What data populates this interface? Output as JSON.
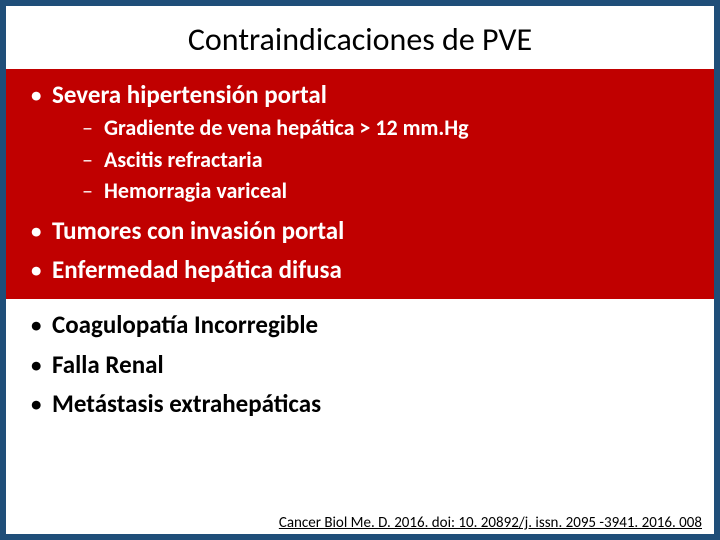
{
  "slide": {
    "title": "Contraindicaciones de PVE",
    "border_color": "#1f4e79",
    "background_color": "#ffffff",
    "title_fontsize": 32,
    "title_color": "#000000",
    "blocks": [
      {
        "background_color": "#c00000",
        "text_color": "#ffffff",
        "items": [
          {
            "text": "Severa hipertensión portal",
            "sub": [
              "Gradiente de vena hepática > 12 mm.Hg",
              "Ascitis refractaria",
              "Hemorragia variceal"
            ]
          },
          {
            "text": "Tumores con invasión portal",
            "sub": []
          },
          {
            "text": "Enfermedad hepática difusa",
            "sub": []
          }
        ]
      },
      {
        "background_color": "#ffffff",
        "text_color": "#000000",
        "items": [
          {
            "text": "Coagulopatía Incorregible",
            "sub": []
          },
          {
            "text": "Falla Renal",
            "sub": []
          },
          {
            "text": "Metástasis extrahepáticas",
            "sub": []
          }
        ]
      }
    ],
    "citation": "Cancer Biol Me. D. 2016. doi: 10. 20892/j. issn. 2095 -3941. 2016. 008",
    "level1_fontsize": 25,
    "level2_fontsize": 22,
    "citation_fontsize": 15
  }
}
